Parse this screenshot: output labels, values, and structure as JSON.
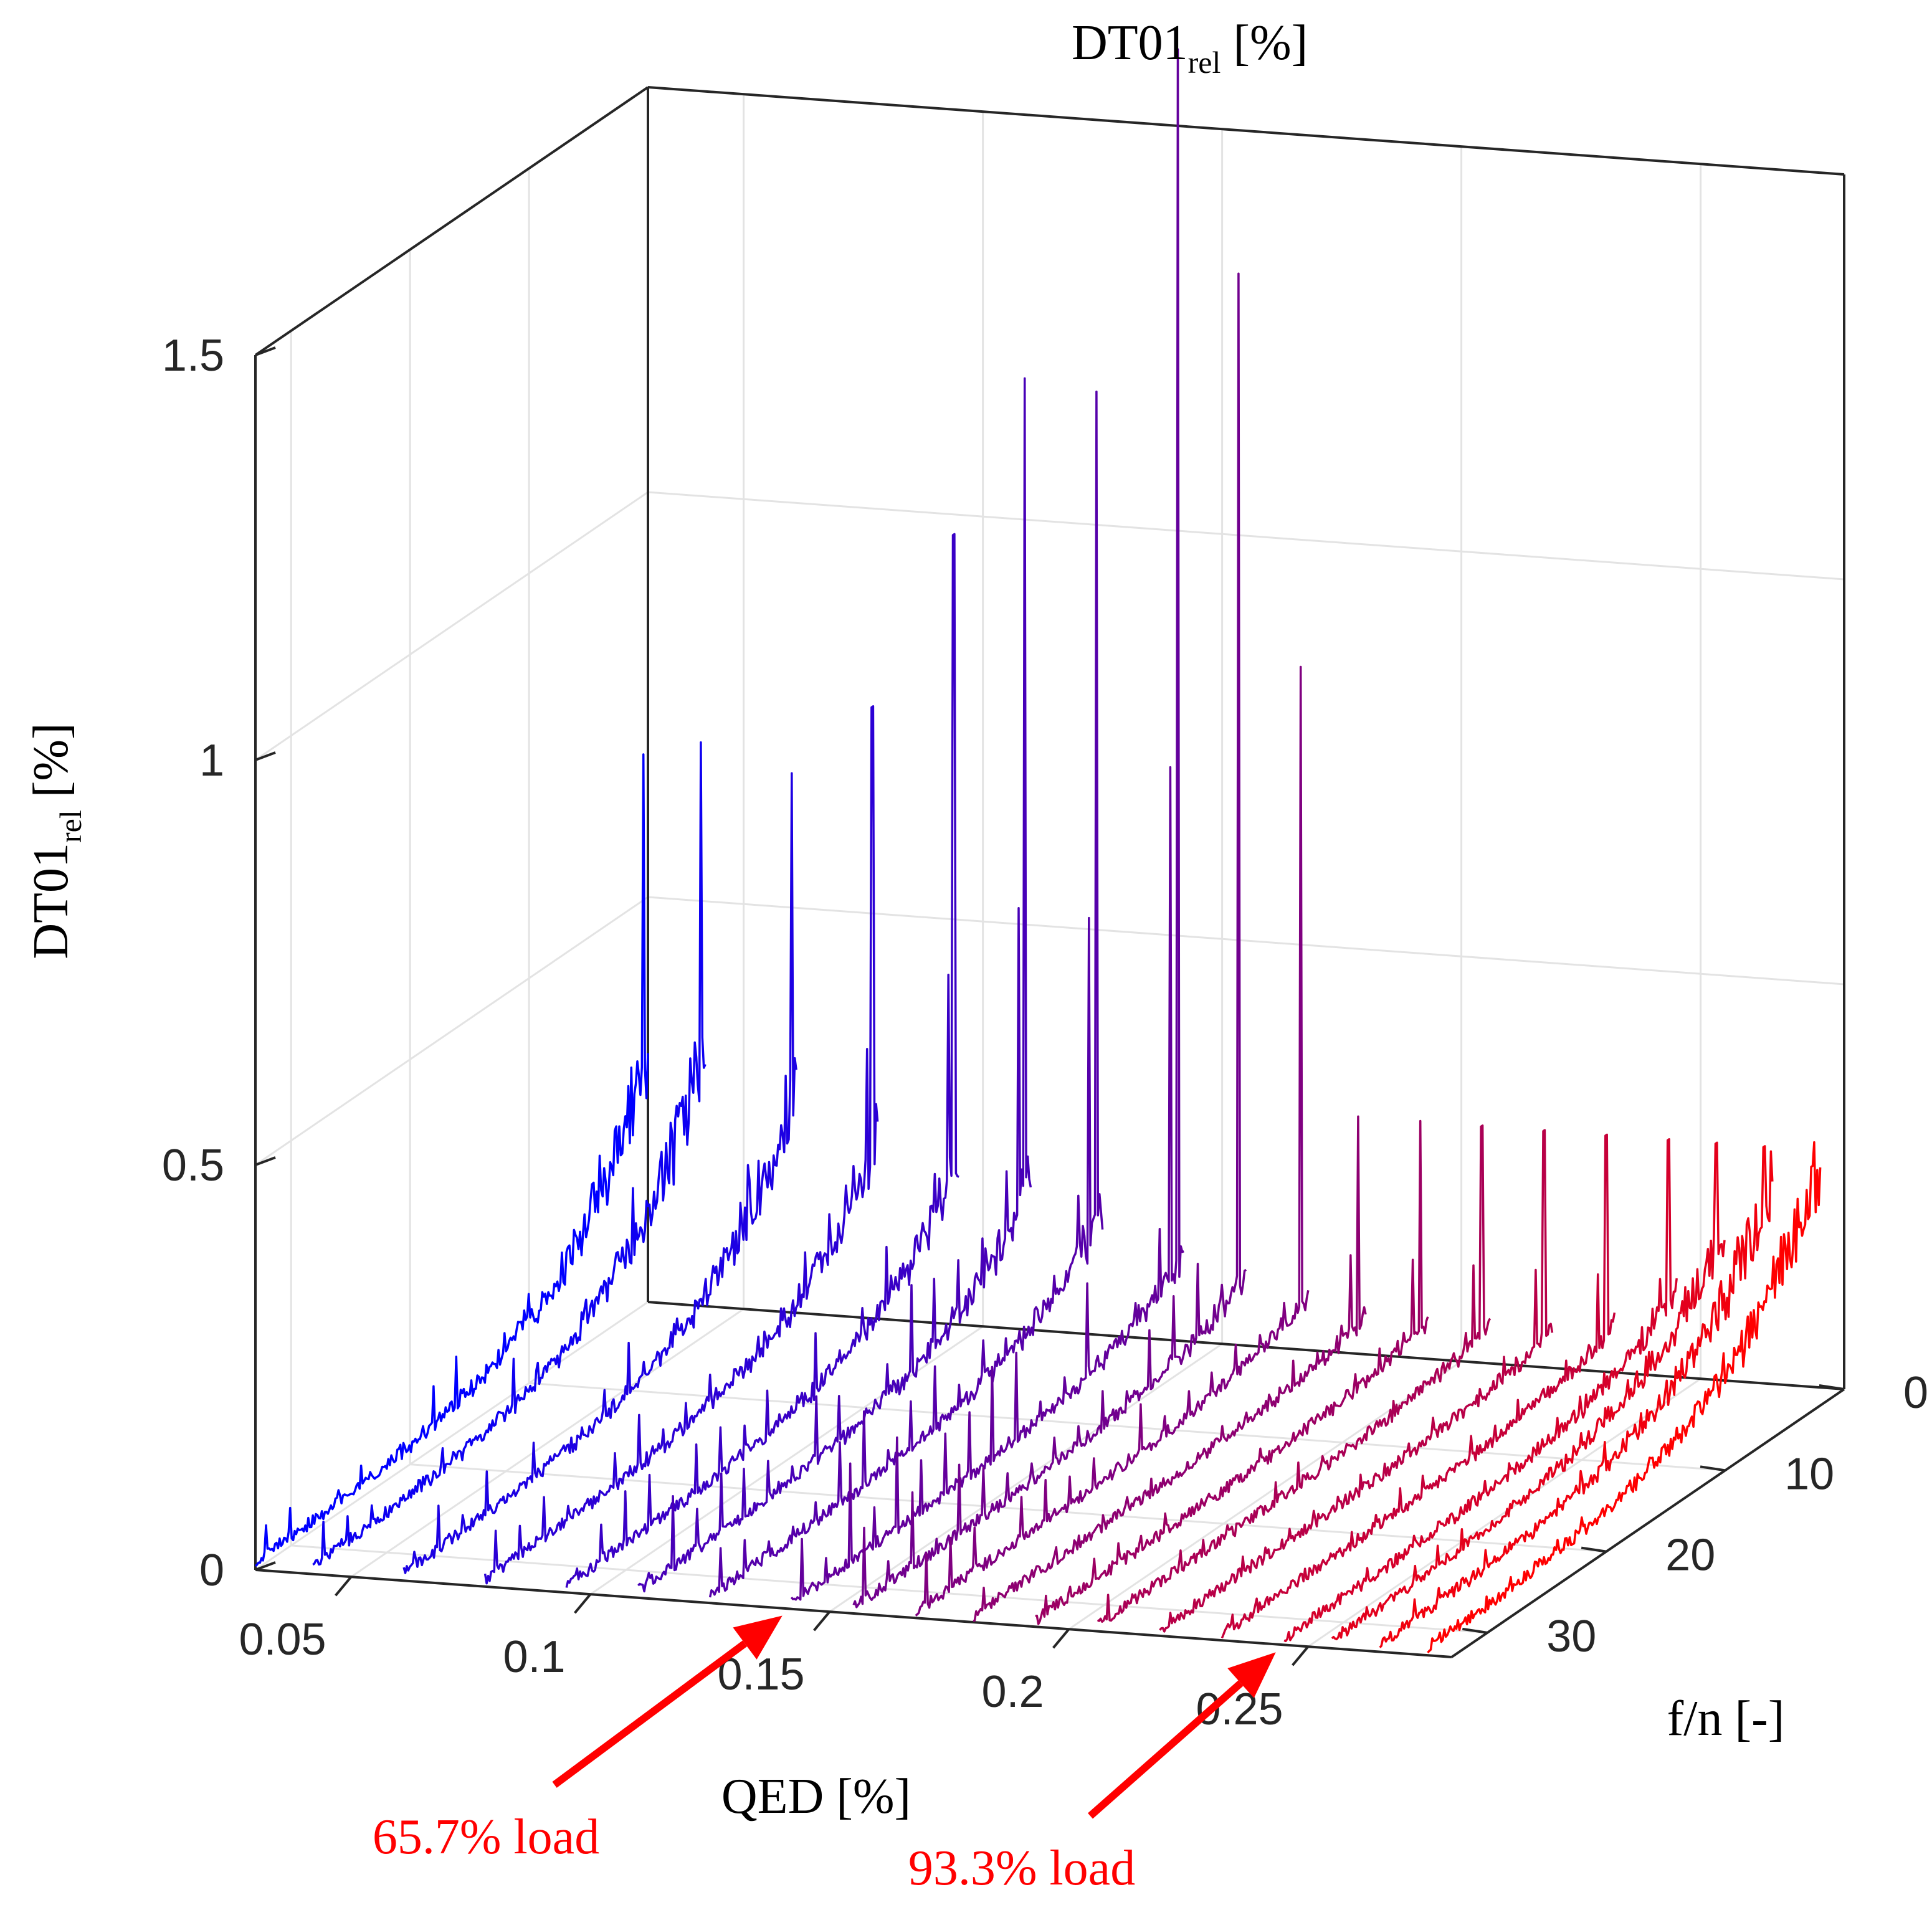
{
  "chart_data": {
    "type": "waterfall-3d-line",
    "title_main": "DT01",
    "title_sub": "rel",
    "title_unit": " [%]",
    "zlabel_main": "DT01",
    "zlabel_sub": "rel",
    "zlabel_unit": " [%]",
    "xlabel": "QED [%]",
    "ylabel": "f/n [-]",
    "xlim": [
      0.03,
      0.28
    ],
    "ylim": [
      0,
      33
    ],
    "zlim": [
      0,
      1.5
    ],
    "x_ticks": [
      {
        "value": 0.05,
        "label": "0.05"
      },
      {
        "value": 0.1,
        "label": "0.1"
      },
      {
        "value": 0.15,
        "label": "0.15"
      },
      {
        "value": 0.2,
        "label": "0.2"
      },
      {
        "value": 0.25,
        "label": "0.25"
      }
    ],
    "y_ticks": [
      {
        "value": 0,
        "label": "0"
      },
      {
        "value": 10,
        "label": "10"
      },
      {
        "value": 20,
        "label": "20"
      },
      {
        "value": 30,
        "label": "30"
      }
    ],
    "z_ticks": [
      {
        "value": 0,
        "label": "0"
      },
      {
        "value": 0.5,
        "label": "0.5"
      },
      {
        "value": 1,
        "label": "1"
      },
      {
        "value": 1.5,
        "label": "1.5"
      }
    ],
    "colormap": {
      "start": "#0000ff",
      "end": "#ff0000"
    },
    "series": [
      {
        "qed": 0.03,
        "peak": 0.68,
        "pos": 0.42,
        "low": 0.3
      },
      {
        "qed": 0.042,
        "peak": 0.7,
        "pos": 0.4,
        "low": 0.32
      },
      {
        "qed": 0.061,
        "peak": 0.67,
        "pos": 0.42,
        "low": 0.28
      },
      {
        "qed": 0.078,
        "peak": 0.76,
        "pos": 0.45,
        "low": 0.22
      },
      {
        "qed": 0.095,
        "peak": 0.98,
        "pos": 0.45,
        "low": 0.2
      },
      {
        "qed": 0.11,
        "peak": 1.18,
        "pos": 0.5,
        "low": 0.18
      },
      {
        "qed": 0.125,
        "peak": 1.17,
        "pos": 0.55,
        "low": 0.15
      },
      {
        "qed": 0.142,
        "peak": 1.6,
        "pos": 0.55,
        "low": 0.1
      },
      {
        "qed": 0.155,
        "peak": 1.33,
        "pos": 0.6,
        "low": 0.08
      },
      {
        "qed": 0.168,
        "peak": 0.85,
        "pos": 0.6,
        "low": 0.06
      },
      {
        "qed": 0.18,
        "peak": 0.3,
        "pos": 0.65,
        "low": 0.04
      },
      {
        "qed": 0.193,
        "peak": 0.3,
        "pos": 0.65,
        "low": 0.04
      },
      {
        "qed": 0.206,
        "peak": 0.3,
        "pos": 0.7,
        "low": 0.04
      },
      {
        "qed": 0.219,
        "peak": 0.3,
        "pos": 0.7,
        "low": 0.04
      },
      {
        "qed": 0.232,
        "peak": 0.3,
        "pos": 0.7,
        "low": 0.05
      },
      {
        "qed": 0.245,
        "peak": 0.3,
        "pos": 0.7,
        "low": 0.1
      },
      {
        "qed": 0.255,
        "peak": 0.3,
        "pos": 0.7,
        "low": 0.18
      },
      {
        "qed": 0.265,
        "peak": 0.3,
        "pos": 0.7,
        "low": 0.25
      },
      {
        "qed": 0.275,
        "peak": 0.28,
        "pos": 0.7,
        "low": 0.28
      }
    ],
    "annotations": [
      {
        "text": "65.7% load",
        "target_qed": 0.142,
        "color": "#ff0000"
      },
      {
        "text": "93.3% load",
        "target_qed": 0.245,
        "color": "#ff0000"
      }
    ]
  }
}
